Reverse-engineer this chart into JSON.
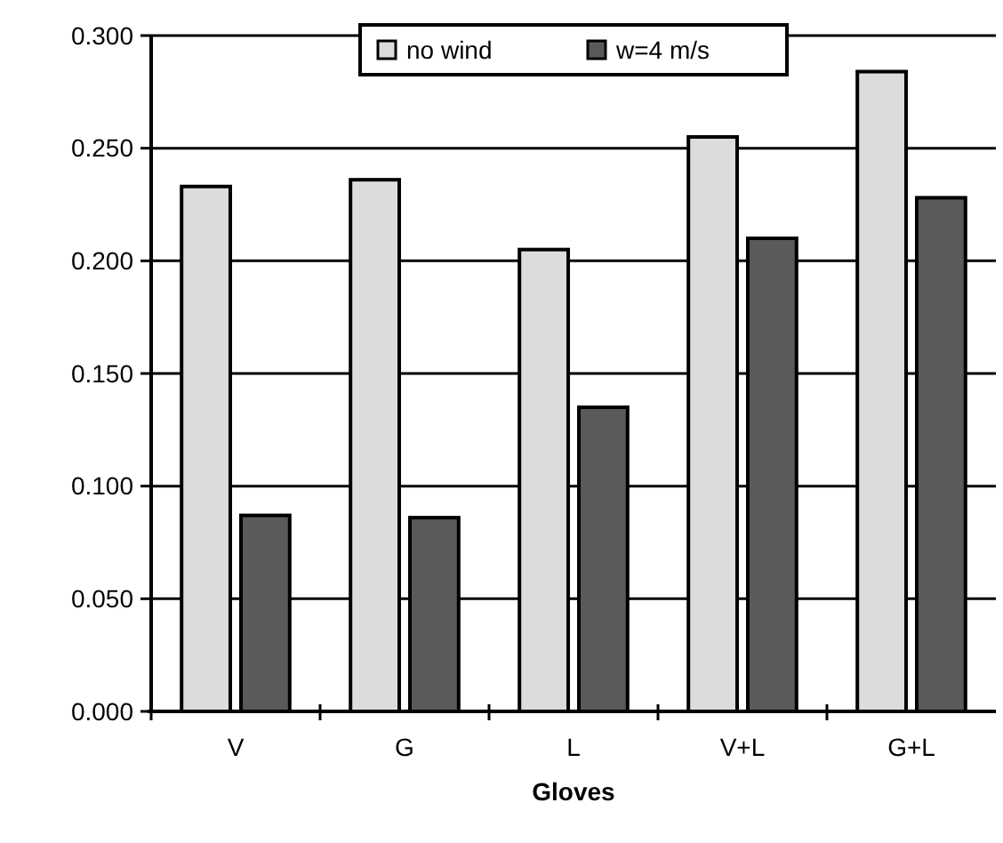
{
  "chart_data": {
    "type": "bar",
    "xlabel": "Gloves",
    "categories": [
      "V",
      "G",
      "L",
      "V+L",
      "G+L"
    ],
    "series": [
      {
        "name": "no wind",
        "color": "#dcdcdc",
        "values": [
          0.233,
          0.236,
          0.205,
          0.255,
          0.284
        ]
      },
      {
        "name": "w=4 m/s",
        "color": "#5a5a5a",
        "values": [
          0.087,
          0.086,
          0.135,
          0.21,
          0.228
        ]
      }
    ],
    "ylim": [
      0,
      0.3
    ],
    "yticks": [
      {
        "value": 0,
        "label": "0.000"
      },
      {
        "value": 0.05,
        "label": "0.050"
      },
      {
        "value": 0.1,
        "label": "0.100"
      },
      {
        "value": 0.15,
        "label": "0.150"
      },
      {
        "value": 0.2,
        "label": "0.200"
      },
      {
        "value": 0.25,
        "label": "0.250"
      },
      {
        "value": 0.3,
        "label": "0.300"
      }
    ],
    "grid": "y",
    "legend": "top"
  }
}
